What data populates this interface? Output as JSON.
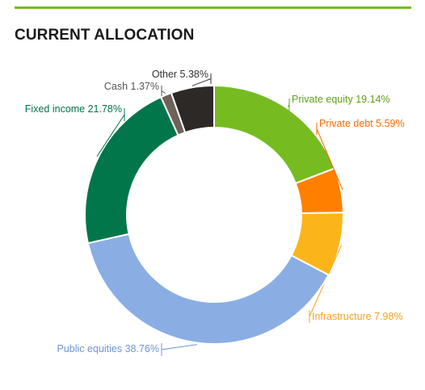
{
  "title": "CURRENT ALLOCATION",
  "colors": {
    "accent_rule": "#76bc21"
  },
  "chart_data": {
    "type": "pie",
    "title": "CURRENT ALLOCATION",
    "donut": true,
    "slices": [
      {
        "label": "Private equity",
        "value": 19.14,
        "display": "Private equity 19.14%",
        "color": "#76bc21",
        "label_color": "#5fa018"
      },
      {
        "label": "Private debt",
        "value": 5.59,
        "display": "Private debt 5.59%",
        "color": "#ff8000",
        "label_color": "#ff6a00"
      },
      {
        "label": "Infrastructure",
        "value": 7.98,
        "display": "Infrastructure 7.98%",
        "color": "#fbb51b",
        "label_color": "#f7a21b"
      },
      {
        "label": "Public equities",
        "value": 38.76,
        "display": "Public equities 38.76%",
        "color": "#8aaee4",
        "label_color": "#6f94d6"
      },
      {
        "label": "Fixed income",
        "value": 21.78,
        "display": "Fixed income 21.78%",
        "color": "#00764a",
        "label_color": "#00764a"
      },
      {
        "label": "Cash",
        "value": 1.37,
        "display": "Cash 1.37%",
        "color": "#6e6259",
        "label_color": "#555555"
      },
      {
        "label": "Other",
        "value": 5.38,
        "display": "Other 5.38%",
        "color": "#2d2926",
        "label_color": "#333333"
      }
    ]
  }
}
